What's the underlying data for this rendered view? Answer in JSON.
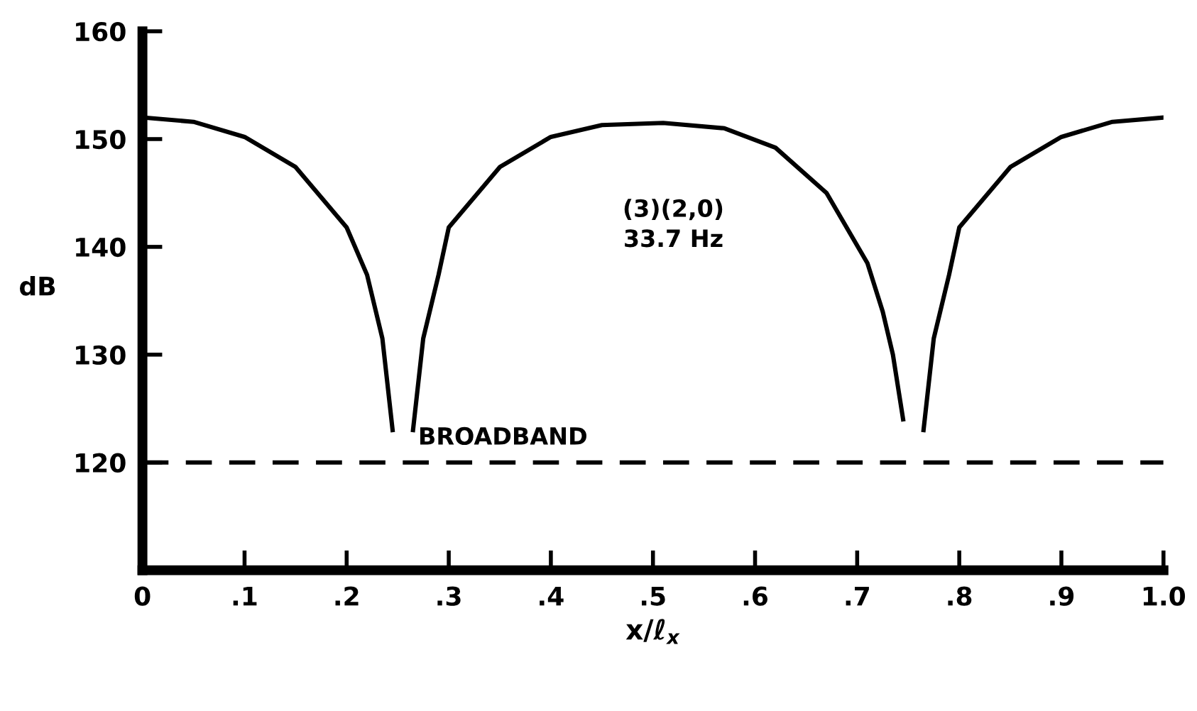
{
  "chart_data": {
    "type": "line",
    "ylabel": "dB",
    "xlabel": "x/ℓ$_{x}$",
    "x": [
      0,
      0.05,
      0.1,
      0.15,
      0.2,
      0.22,
      0.235,
      0.245,
      0.255,
      0.265,
      0.275,
      0.29,
      0.3,
      0.35,
      0.4,
      0.45,
      0.51,
      0.57,
      0.62,
      0.67,
      0.71,
      0.725,
      0.735,
      0.745,
      0.755,
      0.765,
      0.775,
      0.79,
      0.8,
      0.85,
      0.9,
      0.95,
      1.0
    ],
    "series": [
      {
        "color": "#000000",
        "values": [
          152,
          151.6,
          150.2,
          147.4,
          141.8,
          137.4,
          131.5,
          123,
          null,
          123,
          131.5,
          137.4,
          141.8,
          147.4,
          150.2,
          151.3,
          151.5,
          151,
          149.2,
          145,
          138.5,
          134,
          130,
          124,
          null,
          123,
          131.5,
          137.4,
          141.8,
          147.4,
          150.2,
          151.6,
          152
        ]
      }
    ],
    "xlim": [
      0,
      1.0
    ],
    "ylim": [
      110,
      160
    ],
    "xticks": [
      0,
      {
        "value": 0.1,
        "label": ".1"
      },
      {
        "value": 0.2,
        "label": ".2"
      },
      {
        "value": 0.3,
        "label": ".3"
      },
      {
        "value": 0.4,
        "label": ".4"
      },
      {
        "value": 0.5,
        "label": ".5"
      },
      {
        "value": 0.6,
        "label": ".6"
      },
      {
        "value": 0.7,
        "label": ".7"
      },
      {
        "value": 0.8,
        "label": ".8"
      },
      {
        "value": 0.9,
        "label": ".9"
      },
      {
        "value": 1.0,
        "label": "1.0"
      }
    ],
    "yticks": [
      120,
      130,
      140,
      150,
      160
    ],
    "ref_lines": [
      {
        "axis": "y",
        "value": 120,
        "label": "BROADBAND",
        "color": "#000000",
        "line_style": "dashed"
      }
    ],
    "annotations": [
      "(3)(2,0)\n33.7 Hz"
    ],
    "marker": "none",
    "line_style": "solid",
    "grid": false,
    "legend": false
  }
}
